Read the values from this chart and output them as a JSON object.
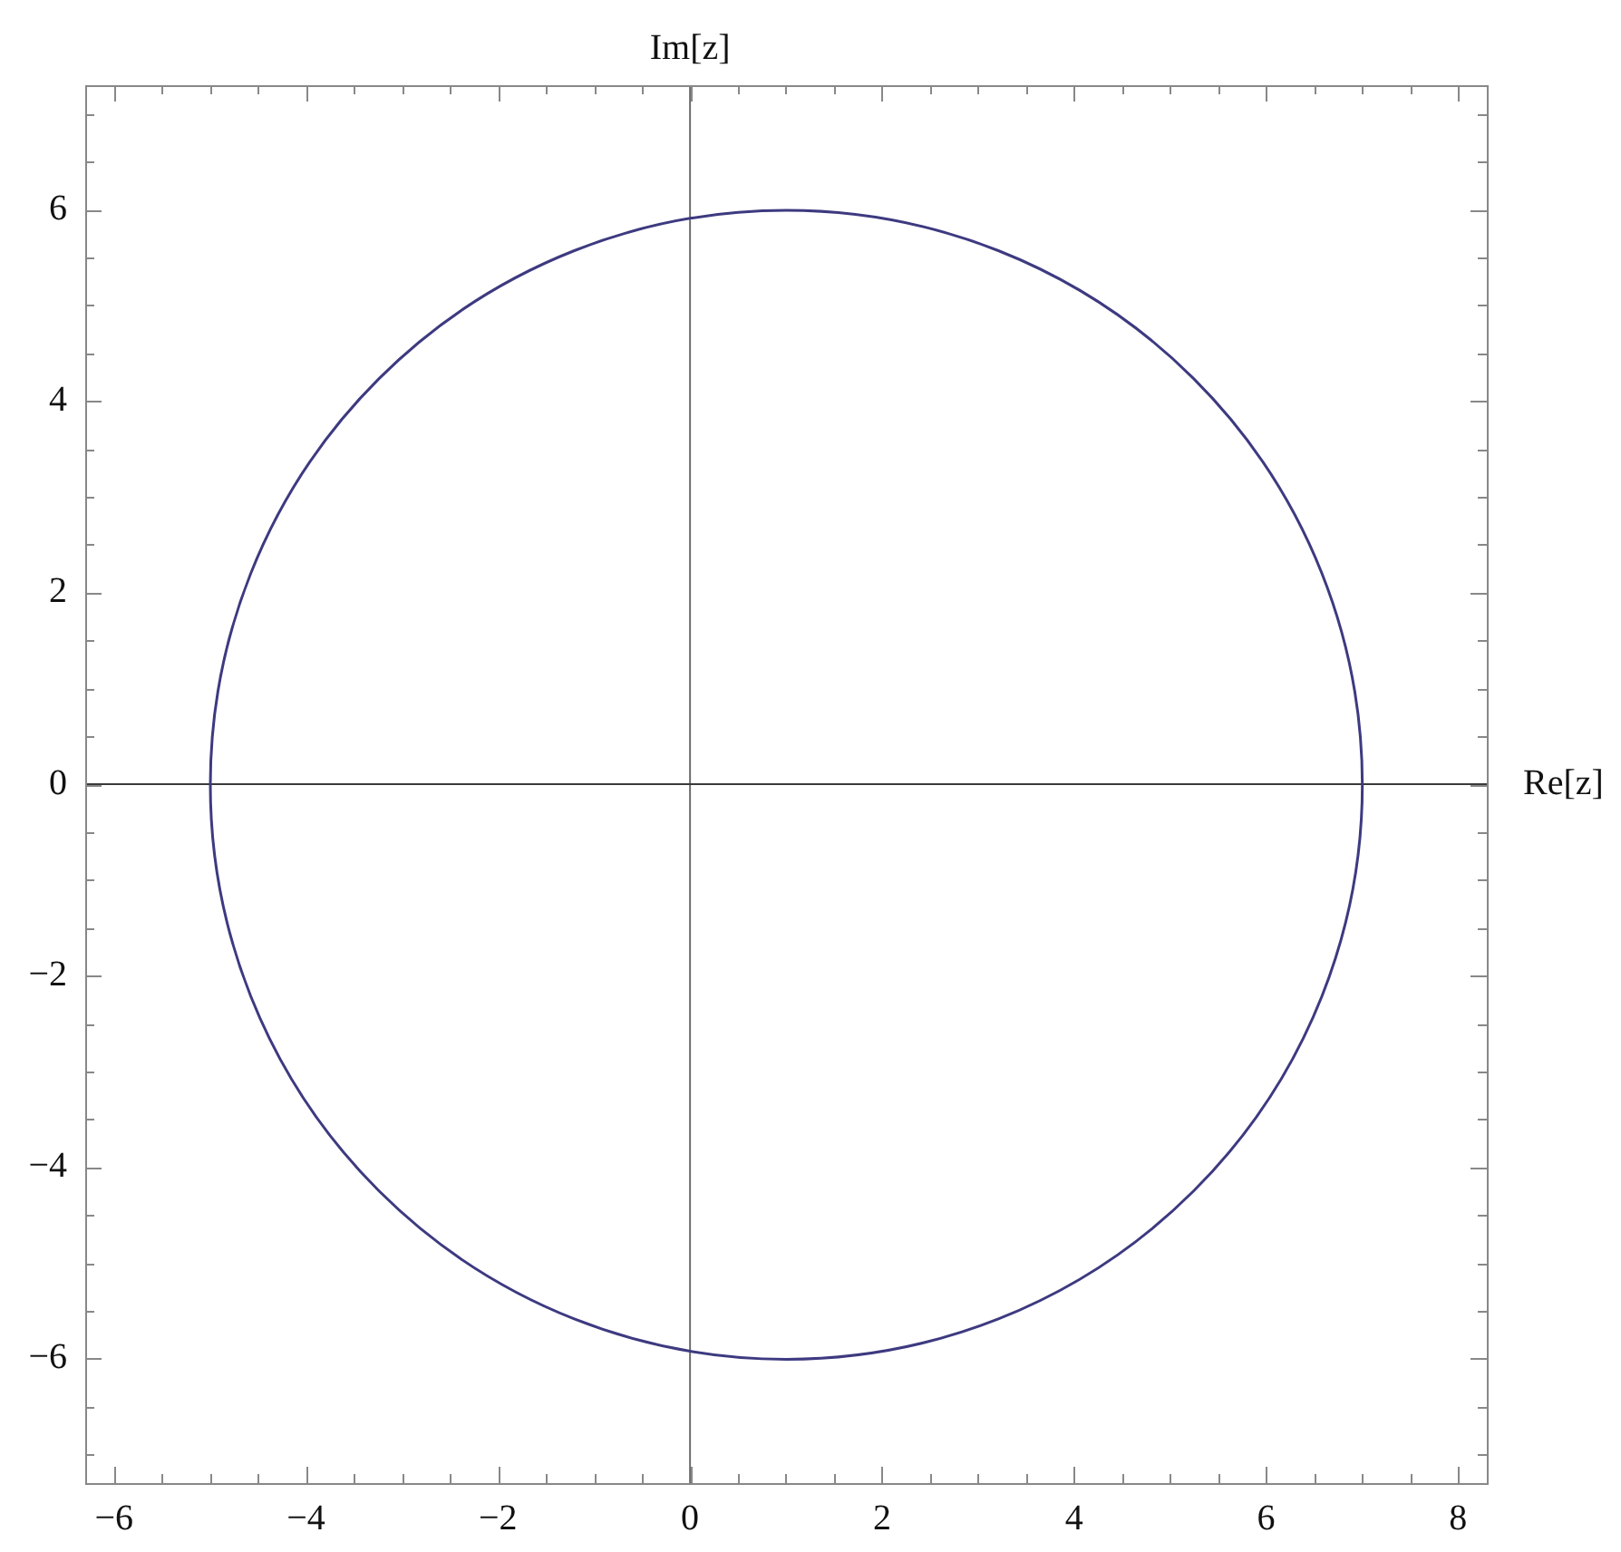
{
  "chart_data": {
    "type": "line",
    "xlabel": "Re[z]",
    "ylabel": "Im[z]",
    "grid": false,
    "legend": false,
    "xlim": [
      -6.3,
      8.3
    ],
    "ylim": [
      -7.3,
      7.3
    ],
    "xticks": [
      -6,
      {
        "value": -5.5,
        "label": null
      },
      {
        "value": -5,
        "label": null
      },
      {
        "value": -4.5,
        "label": null
      },
      -4,
      {
        "value": -3.5,
        "label": null
      },
      {
        "value": -3,
        "label": null
      },
      {
        "value": -2.5,
        "label": null
      },
      -2,
      {
        "value": -1.5,
        "label": null
      },
      {
        "value": -1,
        "label": null
      },
      {
        "value": -0.5,
        "label": null
      },
      0,
      {
        "value": 0.5,
        "label": null
      },
      {
        "value": 1,
        "label": null
      },
      {
        "value": 1.5,
        "label": null
      },
      2,
      {
        "value": 2.5,
        "label": null
      },
      {
        "value": 3,
        "label": null
      },
      {
        "value": 3.5,
        "label": null
      },
      4,
      {
        "value": 4.5,
        "label": null
      },
      {
        "value": 5,
        "label": null
      },
      {
        "value": 5.5,
        "label": null
      },
      6,
      {
        "value": 6.5,
        "label": null
      },
      {
        "value": 7,
        "label": null
      },
      {
        "value": 7.5,
        "label": null
      },
      8
    ],
    "yticks": [
      {
        "value": -7,
        "label": null
      },
      {
        "value": -6.5,
        "label": null
      },
      -6,
      {
        "value": -5.5,
        "label": null
      },
      {
        "value": -5,
        "label": null
      },
      {
        "value": -4.5,
        "label": null
      },
      -4,
      {
        "value": -3.5,
        "label": null
      },
      {
        "value": -3,
        "label": null
      },
      {
        "value": -2.5,
        "label": null
      },
      -2,
      {
        "value": -1.5,
        "label": null
      },
      {
        "value": -1,
        "label": null
      },
      {
        "value": -0.5,
        "label": null
      },
      0,
      {
        "value": 0.5,
        "label": null
      },
      {
        "value": 1,
        "label": null
      },
      {
        "value": 1.5,
        "label": null
      },
      2,
      {
        "value": 2.5,
        "label": null
      },
      {
        "value": 3,
        "label": null
      },
      {
        "value": 3.5,
        "label": null
      },
      4,
      {
        "value": 4.5,
        "label": null
      },
      {
        "value": 5,
        "label": null
      },
      {
        "value": 5.5,
        "label": null
      },
      6,
      {
        "value": 6.5,
        "label": null
      },
      {
        "value": 7,
        "label": null
      }
    ],
    "ref_lines": [
      {
        "axis": "x",
        "value": 0,
        "color": "#6e6e6e"
      },
      {
        "axis": "y",
        "value": 0,
        "color": "#3a3a3a"
      }
    ]
  }
}
